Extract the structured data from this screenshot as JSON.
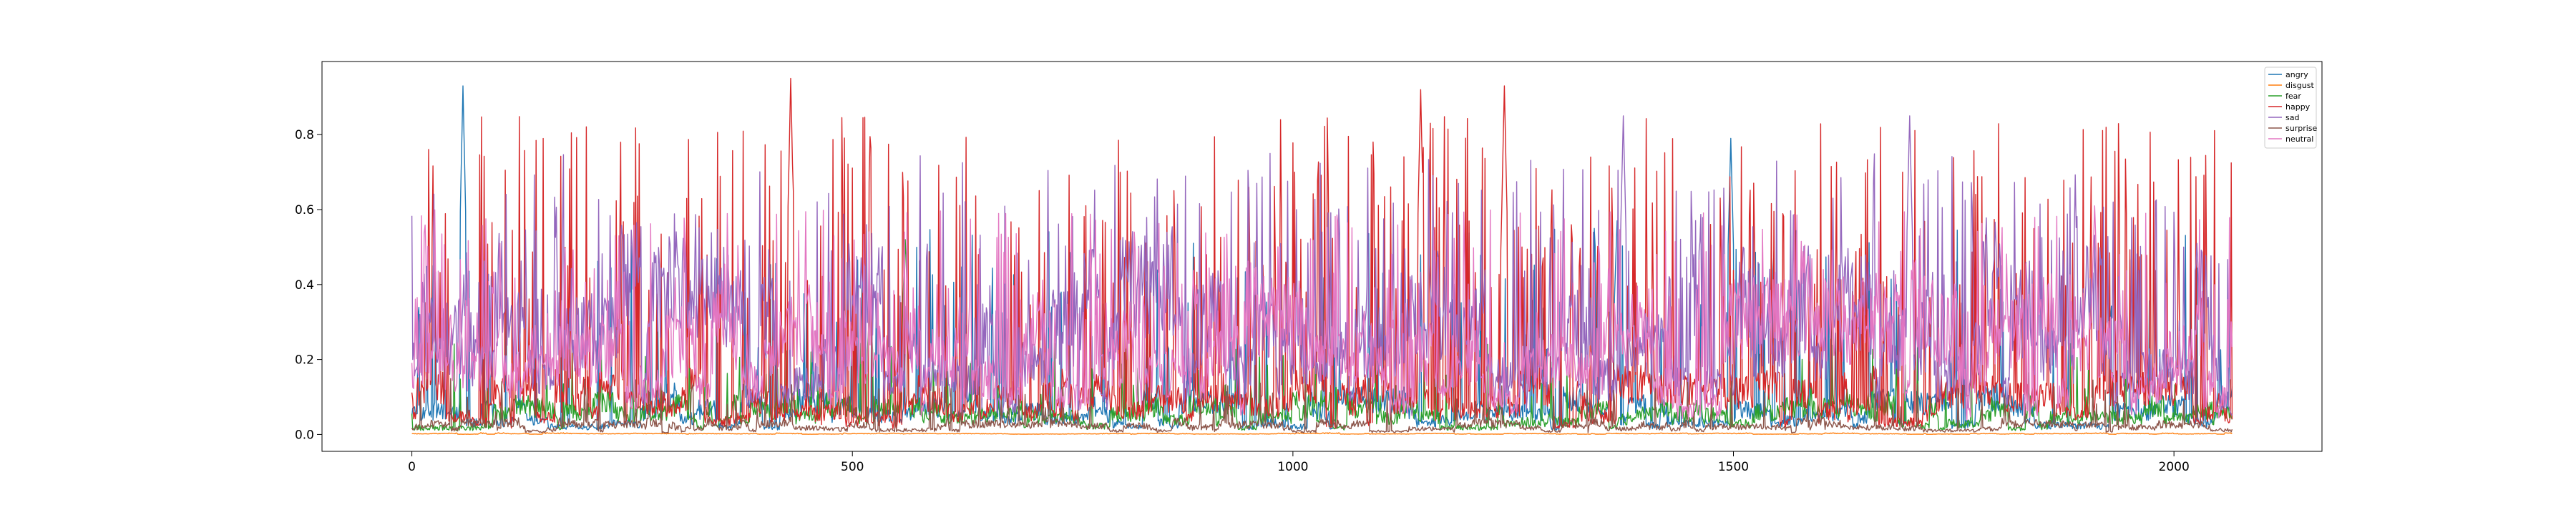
{
  "chart_data": {
    "type": "line",
    "title": "",
    "xlabel": "",
    "ylabel": "",
    "xlim": [
      -102,
      2168
    ],
    "ylim": [
      -0.045,
      0.995
    ],
    "xticks": [
      0,
      500,
      1000,
      1500,
      2000
    ],
    "yticks": [
      0.0,
      0.2,
      0.4,
      0.6,
      0.8
    ],
    "ytick_labels": [
      "0.0",
      "0.2",
      "0.4",
      "0.6",
      "0.8"
    ],
    "grid": false,
    "legend_position": "top-right",
    "n_points": 2067,
    "series": [
      {
        "name": "angry",
        "color": "#1f77b4",
        "base": 0.06,
        "spike": 0.07,
        "spike_height": 0.55,
        "seed": 11,
        "peaks": [
          {
            "x": 58,
            "y": 0.93
          },
          {
            "x": 1497,
            "y": 0.79
          },
          {
            "x": 1368,
            "y": 0.57
          }
        ]
      },
      {
        "name": "disgust",
        "color": "#ff7f0e",
        "base": 0.002,
        "spike": 0.0,
        "spike_height": 0.0,
        "seed": 23,
        "peaks": []
      },
      {
        "name": "fear",
        "color": "#2ca02c",
        "base": 0.05,
        "spike": 0.05,
        "spike_height": 0.25,
        "seed": 37,
        "peaks": [
          {
            "x": 560,
            "y": 0.52
          },
          {
            "x": 520,
            "y": 0.35
          }
        ]
      },
      {
        "name": "happy",
        "color": "#d62728",
        "base": 0.08,
        "spike": 0.16,
        "spike_height": 0.85,
        "seed": 41,
        "peaks": [
          {
            "x": 430,
            "y": 0.95
          },
          {
            "x": 1145,
            "y": 0.92
          },
          {
            "x": 1240,
            "y": 0.93
          }
        ]
      },
      {
        "name": "sad",
        "color": "#9467bd",
        "base": 0.25,
        "spike": 0.13,
        "spike_height": 0.75,
        "seed": 53,
        "peaks": [
          {
            "x": 1375,
            "y": 0.85
          },
          {
            "x": 1700,
            "y": 0.85
          }
        ]
      },
      {
        "name": "surprise",
        "color": "#8c564b",
        "base": 0.02,
        "spike": 0.04,
        "spike_height": 0.15,
        "seed": 67,
        "peaks": []
      },
      {
        "name": "neutral",
        "color": "#e377c2",
        "base": 0.2,
        "spike": 0.14,
        "spike_height": 0.6,
        "seed": 79,
        "peaks": [
          {
            "x": 1910,
            "y": 0.61
          }
        ]
      }
    ]
  }
}
